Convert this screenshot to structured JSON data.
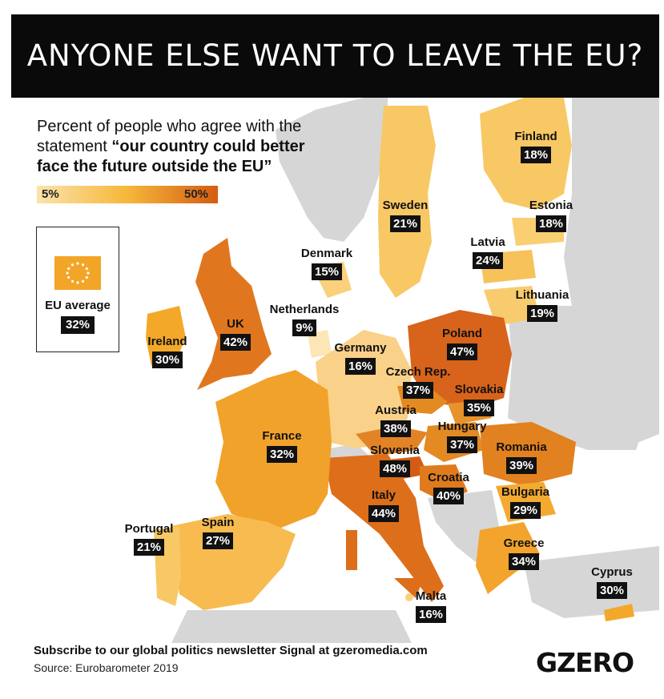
{
  "title": "ANYONE ELSE WANT TO LEAVE THE EU?",
  "subtitle_plain": "Percent of people who agree with the statement ",
  "subtitle_bold": "“our country could better face the future outside the EU”",
  "scale": {
    "min": "5%",
    "max": "50%",
    "min_color": "#fbe3ab",
    "max_color": "#d45c12"
  },
  "eu_average": {
    "label": "EU average",
    "value": "32%"
  },
  "colors": {
    "non_eu": "#d6d6d6",
    "sea": "#ffffff",
    "highlight_low": "#fbe3ab",
    "highlight_high": "#d45c12"
  },
  "countries": [
    {
      "name": "Finland",
      "value": "18%"
    },
    {
      "name": "Sweden",
      "value": "21%"
    },
    {
      "name": "Estonia",
      "value": "18%"
    },
    {
      "name": "Latvia",
      "value": "24%"
    },
    {
      "name": "Denmark",
      "value": "15%"
    },
    {
      "name": "Lithuania",
      "value": "19%"
    },
    {
      "name": "Netherlands",
      "value": "9%"
    },
    {
      "name": "UK",
      "value": "42%"
    },
    {
      "name": "Poland",
      "value": "47%"
    },
    {
      "name": "Ireland",
      "value": "30%"
    },
    {
      "name": "Germany",
      "value": "16%"
    },
    {
      "name": "Czech Rep.",
      "value": "37%"
    },
    {
      "name": "Slovakia",
      "value": "35%"
    },
    {
      "name": "Austria",
      "value": "38%"
    },
    {
      "name": "Hungary",
      "value": "37%"
    },
    {
      "name": "France",
      "value": "32%"
    },
    {
      "name": "Romania",
      "value": "39%"
    },
    {
      "name": "Slovenia",
      "value": "48%"
    },
    {
      "name": "Croatia",
      "value": "40%"
    },
    {
      "name": "Bulgaria",
      "value": "29%"
    },
    {
      "name": "Italy",
      "value": "44%"
    },
    {
      "name": "Portugal",
      "value": "21%"
    },
    {
      "name": "Spain",
      "value": "27%"
    },
    {
      "name": "Greece",
      "value": "34%"
    },
    {
      "name": "Cyprus",
      "value": "30%"
    },
    {
      "name": "Malta",
      "value": "16%"
    }
  ],
  "footer": {
    "newsletter": "Subscribe to our global politics newsletter Signal at gzeromedia.com",
    "source": "Source: Eurobarometer 2019",
    "logo": "GZERO"
  }
}
